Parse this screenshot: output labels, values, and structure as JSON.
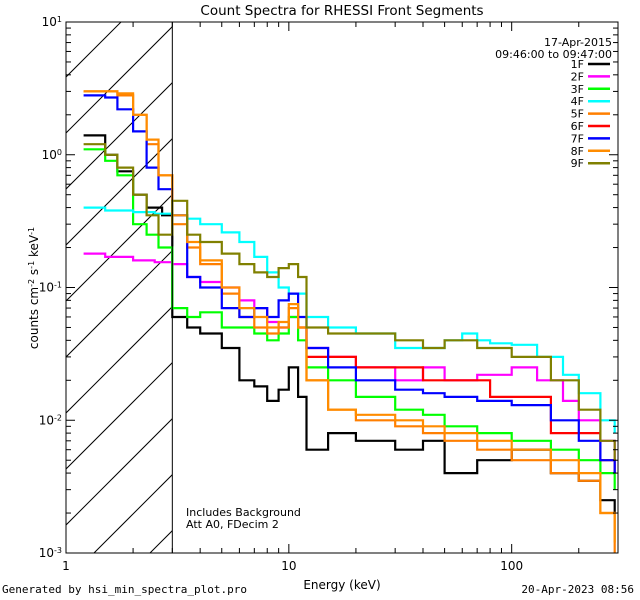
{
  "chart_data": {
    "type": "line",
    "title": "Count Spectra for RHESSI Front Segments",
    "xlabel": "Energy (keV)",
    "ylabel": "counts cm^-2 s^-1 keV^-1",
    "xscale": "log",
    "yscale": "log",
    "xlim": [
      1,
      300
    ],
    "ylim": [
      0.001,
      10
    ],
    "x_ticks": [
      {
        "value": 1,
        "label": "1"
      },
      {
        "value": 10,
        "label": "10"
      },
      {
        "value": 100,
        "label": "100"
      }
    ],
    "y_ticks": [
      {
        "value": 10,
        "base": "10",
        "exp": "1"
      },
      {
        "value": 1,
        "base": "10",
        "exp": "0"
      },
      {
        "value": 0.1,
        "base": "10",
        "exp": "-1"
      },
      {
        "value": 0.01,
        "base": "10",
        "exp": "-2"
      },
      {
        "value": 0.001,
        "base": "10",
        "exp": "-3"
      }
    ],
    "date": "17-Apr-2015",
    "time_range": "09:46:00 to 09:47:00",
    "hatched_region_keV": [
      1,
      3
    ],
    "annotations": [
      "Includes Background",
      "Att A0, FDecim 2"
    ],
    "series": [
      {
        "name": "1F",
        "color": "#000000",
        "points": [
          [
            1.2,
            1.4
          ],
          [
            1.5,
            1.0
          ],
          [
            1.7,
            0.75
          ],
          [
            2.0,
            0.5
          ],
          [
            2.3,
            0.4
          ],
          [
            2.7,
            0.35
          ],
          [
            3.0,
            0.06
          ],
          [
            3.5,
            0.05
          ],
          [
            4.0,
            0.045
          ],
          [
            5.0,
            0.035
          ],
          [
            6.0,
            0.02
          ],
          [
            7.0,
            0.018
          ],
          [
            8.0,
            0.014
          ],
          [
            9.0,
            0.017
          ],
          [
            10.0,
            0.025
          ],
          [
            11.0,
            0.015
          ],
          [
            12.0,
            0.006
          ],
          [
            15.0,
            0.008
          ],
          [
            20.0,
            0.007
          ],
          [
            30.0,
            0.006
          ],
          [
            40.0,
            0.007
          ],
          [
            50.0,
            0.004
          ],
          [
            70.0,
            0.005
          ],
          [
            100.0,
            0.006
          ],
          [
            150.0,
            0.004
          ],
          [
            200.0,
            0.0035
          ],
          [
            250.0,
            0.0025
          ],
          [
            290.0,
            0.002
          ]
        ]
      },
      {
        "name": "2F",
        "color": "#ff00ff",
        "points": [
          [
            1.2,
            0.18
          ],
          [
            1.5,
            0.17
          ],
          [
            2.0,
            0.16
          ],
          [
            2.5,
            0.155
          ],
          [
            3.0,
            0.15
          ],
          [
            3.5,
            0.12
          ],
          [
            4.0,
            0.11
          ],
          [
            5.0,
            0.1
          ],
          [
            6.0,
            0.08
          ],
          [
            7.0,
            0.07
          ],
          [
            8.0,
            0.055
          ],
          [
            9.0,
            0.05
          ],
          [
            10.0,
            0.06
          ],
          [
            11.0,
            0.05
          ],
          [
            12.0,
            0.035
          ],
          [
            15.0,
            0.03
          ],
          [
            20.0,
            0.025
          ],
          [
            30.0,
            0.02
          ],
          [
            40.0,
            0.025
          ],
          [
            50.0,
            0.02
          ],
          [
            70.0,
            0.022
          ],
          [
            100.0,
            0.025
          ],
          [
            130.0,
            0.02
          ],
          [
            170.0,
            0.014
          ],
          [
            200.0,
            0.01
          ],
          [
            250.0,
            0.007
          ],
          [
            290.0,
            0.005
          ]
        ]
      },
      {
        "name": "3F",
        "color": "#00ff00",
        "points": [
          [
            1.2,
            1.1
          ],
          [
            1.5,
            0.9
          ],
          [
            1.7,
            0.7
          ],
          [
            2.0,
            0.3
          ],
          [
            2.3,
            0.25
          ],
          [
            2.6,
            0.2
          ],
          [
            3.0,
            0.07
          ],
          [
            3.5,
            0.06
          ],
          [
            4.0,
            0.065
          ],
          [
            5.0,
            0.05
          ],
          [
            6.0,
            0.05
          ],
          [
            7.0,
            0.045
          ],
          [
            8.0,
            0.04
          ],
          [
            9.0,
            0.045
          ],
          [
            10.0,
            0.06
          ],
          [
            11.0,
            0.04
          ],
          [
            12.0,
            0.025
          ],
          [
            15.0,
            0.02
          ],
          [
            20.0,
            0.015
          ],
          [
            30.0,
            0.012
          ],
          [
            40.0,
            0.011
          ],
          [
            50.0,
            0.009
          ],
          [
            70.0,
            0.008
          ],
          [
            100.0,
            0.007
          ],
          [
            150.0,
            0.006
          ],
          [
            200.0,
            0.005
          ],
          [
            250.0,
            0.004
          ],
          [
            290.0,
            0.003
          ]
        ]
      },
      {
        "name": "4F",
        "color": "#00ffff",
        "points": [
          [
            1.2,
            0.4
          ],
          [
            1.5,
            0.38
          ],
          [
            2.0,
            0.37
          ],
          [
            2.5,
            0.36
          ],
          [
            3.0,
            0.35
          ],
          [
            3.5,
            0.33
          ],
          [
            4.0,
            0.3
          ],
          [
            5.0,
            0.26
          ],
          [
            6.0,
            0.22
          ],
          [
            7.0,
            0.17
          ],
          [
            8.0,
            0.13
          ],
          [
            9.0,
            0.1
          ],
          [
            10.0,
            0.09
          ],
          [
            12.0,
            0.06
          ],
          [
            15.0,
            0.05
          ],
          [
            20.0,
            0.045
          ],
          [
            30.0,
            0.035
          ],
          [
            40.0,
            0.035
          ],
          [
            50.0,
            0.04
          ],
          [
            60.0,
            0.045
          ],
          [
            70.0,
            0.04
          ],
          [
            80.0,
            0.038
          ],
          [
            100.0,
            0.037
          ],
          [
            130.0,
            0.03
          ],
          [
            170.0,
            0.022
          ],
          [
            200.0,
            0.016
          ],
          [
            250.0,
            0.01
          ],
          [
            290.0,
            0.008
          ]
        ]
      },
      {
        "name": "5F",
        "color": "#ff7f00",
        "points": [
          [
            1.2,
            3.0
          ],
          [
            1.5,
            3.0
          ],
          [
            1.7,
            2.8
          ],
          [
            2.0,
            2.0
          ],
          [
            2.3,
            1.2
          ],
          [
            2.6,
            0.7
          ],
          [
            3.0,
            0.3
          ],
          [
            3.5,
            0.2
          ],
          [
            4.0,
            0.15
          ],
          [
            5.0,
            0.09
          ],
          [
            6.0,
            0.06
          ],
          [
            7.0,
            0.05
          ],
          [
            8.0,
            0.045
          ],
          [
            9.0,
            0.05
          ],
          [
            10.0,
            0.07
          ],
          [
            11.0,
            0.05
          ],
          [
            12.0,
            0.02
          ],
          [
            15.0,
            0.012
          ],
          [
            20.0,
            0.01
          ],
          [
            30.0,
            0.009
          ],
          [
            40.0,
            0.008
          ],
          [
            50.0,
            0.007
          ],
          [
            70.0,
            0.006
          ],
          [
            100.0,
            0.005
          ],
          [
            150.0,
            0.004
          ],
          [
            200.0,
            0.0035
          ],
          [
            250.0,
            0.002
          ],
          [
            290.0,
            0.001
          ]
        ]
      },
      {
        "name": "6F",
        "color": "#ff0000",
        "points": [
          [
            12.0,
            0.03
          ],
          [
            20.0,
            0.025
          ],
          [
            40.0,
            0.02
          ],
          [
            80.0,
            0.015
          ],
          [
            150.0,
            0.008
          ],
          [
            250.0,
            0.005
          ],
          [
            290.0,
            0.004
          ]
        ]
      },
      {
        "name": "7F",
        "color": "#0000ff",
        "points": [
          [
            1.2,
            2.8
          ],
          [
            1.5,
            2.7
          ],
          [
            1.7,
            2.2
          ],
          [
            2.0,
            1.5
          ],
          [
            2.3,
            0.8
          ],
          [
            2.6,
            0.55
          ],
          [
            3.0,
            0.35
          ],
          [
            3.5,
            0.12
          ],
          [
            4.0,
            0.1
          ],
          [
            5.0,
            0.07
          ],
          [
            6.0,
            0.06
          ],
          [
            7.0,
            0.07
          ],
          [
            8.0,
            0.06
          ],
          [
            9.0,
            0.08
          ],
          [
            10.0,
            0.09
          ],
          [
            11.0,
            0.06
          ],
          [
            12.0,
            0.035
          ],
          [
            15.0,
            0.025
          ],
          [
            20.0,
            0.02
          ],
          [
            30.0,
            0.017
          ],
          [
            40.0,
            0.016
          ],
          [
            50.0,
            0.015
          ],
          [
            70.0,
            0.014
          ],
          [
            100.0,
            0.013
          ],
          [
            150.0,
            0.01
          ],
          [
            200.0,
            0.007
          ],
          [
            250.0,
            0.005
          ],
          [
            290.0,
            0.004
          ]
        ]
      },
      {
        "name": "8F",
        "color": "#ff8c00",
        "points": [
          [
            1.2,
            3.0
          ],
          [
            1.5,
            3.0
          ],
          [
            1.7,
            2.9
          ],
          [
            2.0,
            2.0
          ],
          [
            2.3,
            1.3
          ],
          [
            2.6,
            0.7
          ],
          [
            3.0,
            0.35
          ],
          [
            3.5,
            0.22
          ],
          [
            4.0,
            0.16
          ],
          [
            5.0,
            0.1
          ],
          [
            6.0,
            0.07
          ],
          [
            7.0,
            0.06
          ],
          [
            8.0,
            0.05
          ],
          [
            9.0,
            0.055
          ],
          [
            10.0,
            0.075
          ],
          [
            11.0,
            0.05
          ],
          [
            12.0,
            0.02
          ],
          [
            15.0,
            0.012
          ],
          [
            20.0,
            0.011
          ],
          [
            30.0,
            0.01
          ],
          [
            40.0,
            0.009
          ],
          [
            50.0,
            0.008
          ],
          [
            70.0,
            0.007
          ],
          [
            100.0,
            0.006
          ],
          [
            150.0,
            0.005
          ],
          [
            200.0,
            0.004
          ],
          [
            250.0,
            0.002
          ],
          [
            290.0,
            0.0012
          ]
        ]
      },
      {
        "name": "9F",
        "color": "#808000",
        "points": [
          [
            1.2,
            1.2
          ],
          [
            1.5,
            1.0
          ],
          [
            1.7,
            0.8
          ],
          [
            2.0,
            0.5
          ],
          [
            2.3,
            0.35
          ],
          [
            2.6,
            0.25
          ],
          [
            3.0,
            0.45
          ],
          [
            3.5,
            0.25
          ],
          [
            4.0,
            0.22
          ],
          [
            5.0,
            0.18
          ],
          [
            6.0,
            0.15
          ],
          [
            7.0,
            0.13
          ],
          [
            8.0,
            0.12
          ],
          [
            9.0,
            0.14
          ],
          [
            10.0,
            0.15
          ],
          [
            11.0,
            0.12
          ],
          [
            12.0,
            0.05
          ],
          [
            15.0,
            0.045
          ],
          [
            20.0,
            0.045
          ],
          [
            30.0,
            0.04
          ],
          [
            40.0,
            0.035
          ],
          [
            50.0,
            0.04
          ],
          [
            70.0,
            0.035
          ],
          [
            100.0,
            0.03
          ],
          [
            150.0,
            0.02
          ],
          [
            200.0,
            0.012
          ],
          [
            250.0,
            0.007
          ],
          [
            290.0,
            0.005
          ]
        ]
      }
    ]
  },
  "footer": {
    "left": "Generated by hsi_min_spectra_plot.pro",
    "right": "20-Apr-2023 08:56"
  }
}
